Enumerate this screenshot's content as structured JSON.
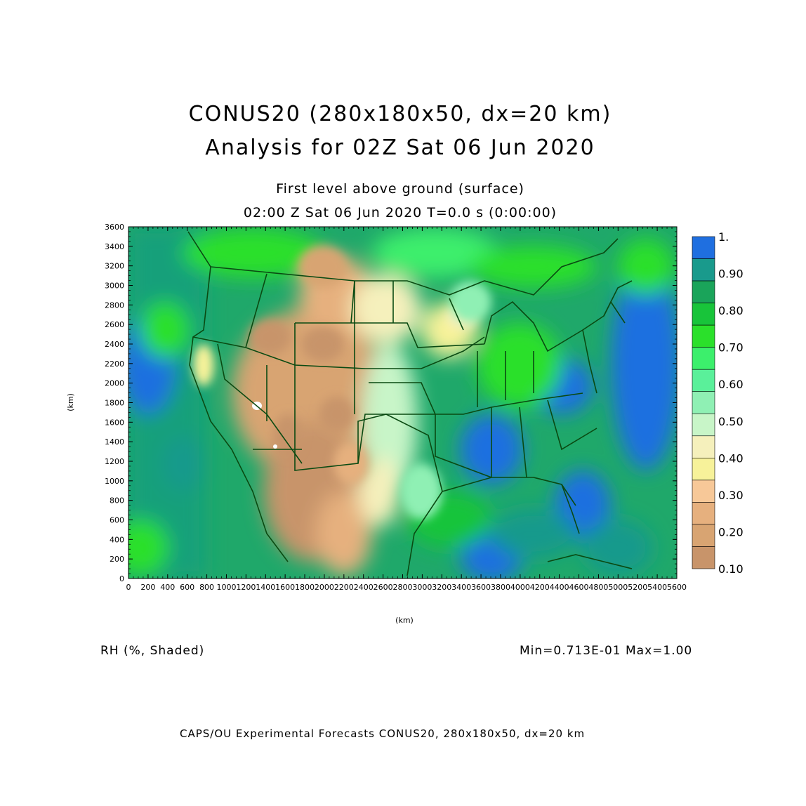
{
  "titles": {
    "line1": "CONUS20 (280x180x50, dx=20 km)",
    "line2": "Analysis for 02Z Sat 06 Jun 2020",
    "level": "First level above ground (surface)",
    "time": "02:00 Z Sat 06 Jun 2020    T=0.0 s (0:00:00)"
  },
  "axes": {
    "x_label": "(km)",
    "y_label": "(km)",
    "x_ticks": [
      "0",
      "200",
      "400",
      "600",
      "800",
      "1000",
      "1200",
      "1400",
      "1600",
      "1800",
      "2000",
      "2200",
      "2400",
      "2600",
      "2800",
      "3000",
      "3200",
      "3400",
      "3600",
      "3800",
      "4000",
      "4200",
      "4400",
      "4600",
      "4800",
      "5000",
      "5200",
      "5400",
      "5600"
    ],
    "y_ticks": [
      "0",
      "200",
      "400",
      "600",
      "800",
      "1000",
      "1200",
      "1400",
      "1600",
      "1800",
      "2000",
      "2200",
      "2400",
      "2600",
      "2800",
      "3000",
      "3200",
      "3400",
      "3600"
    ],
    "x_range_km": [
      0,
      5600
    ],
    "y_range_km": [
      0,
      3600
    ]
  },
  "colorbar": {
    "labels": [
      "1.",
      "0.90",
      "0.80",
      "0.70",
      "0.60",
      "0.50",
      "0.40",
      "0.30",
      "0.20",
      "0.10"
    ],
    "colors": [
      "#1f6fe0",
      "#199a8c",
      "#1aa45a",
      "#18c43a",
      "#2be02b",
      "#3cef6c",
      "#5af09a",
      "#8ff0b4",
      "#c8f5c8",
      "#f5f0bc",
      "#f7f29a",
      "#f7c898",
      "#e6b07e",
      "#d8a472",
      "#c8946a"
    ]
  },
  "field": {
    "variable": "RH (%, Shaded)",
    "stats": "Min=0.713E-01 Max=1.00"
  },
  "footer": "CAPS/OU Experimental Forecasts  CONUS20, 280x180x50, dx=20 km"
}
